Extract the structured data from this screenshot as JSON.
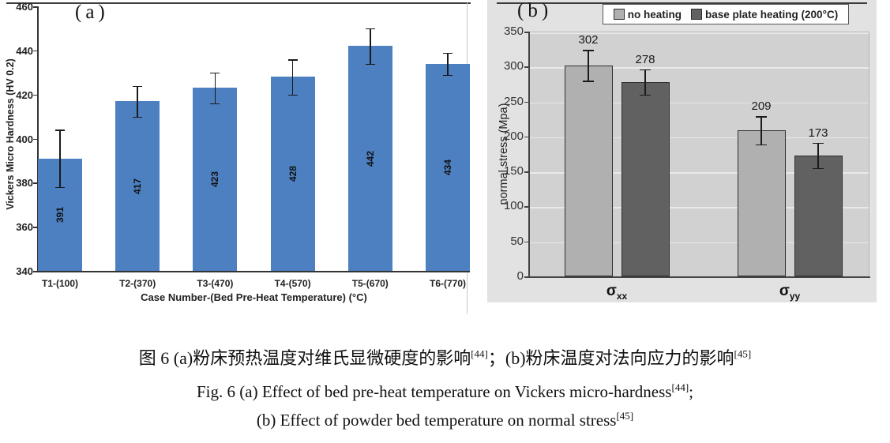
{
  "panels": {
    "a": {
      "label": "(a)"
    },
    "b": {
      "label": "(b)"
    }
  },
  "chart_data": [
    {
      "type": "bar",
      "panel": "a",
      "ylabel": "Vickers Micro Hardness (HV 0.2)",
      "xlabel": "Case Number-(Bed Pre-Heat Temperature) (°C)",
      "ylim": [
        340,
        460
      ],
      "yticks": [
        340,
        360,
        380,
        400,
        420,
        440,
        460
      ],
      "categories": [
        "T1-(100)",
        "T2-(370)",
        "T3-(470)",
        "T4-(570)",
        "T5-(670)",
        "T6-(770)"
      ],
      "values": [
        391,
        417,
        423,
        428,
        442,
        434
      ],
      "errors": [
        13,
        7,
        7,
        8,
        8,
        5
      ],
      "bar_color": "#4d80c0",
      "grid": false,
      "legend": null
    },
    {
      "type": "grouped-bar",
      "panel": "b",
      "ylabel": "normal stress (Mpa)",
      "xlabel": "",
      "ylim": [
        0,
        350
      ],
      "yticks": [
        0,
        50,
        100,
        150,
        200,
        250,
        300,
        350
      ],
      "categories": [
        {
          "base": "σ",
          "sub": "xx"
        },
        {
          "base": "σ",
          "sub": "yy"
        }
      ],
      "series": [
        {
          "name": "no heating",
          "values": [
            302,
            209
          ],
          "errors": [
            22,
            20
          ],
          "color": "#b0b0b0"
        },
        {
          "name": "base plate heating (200°C)",
          "values": [
            278,
            173
          ],
          "errors": [
            18,
            18
          ],
          "color": "#616161"
        }
      ],
      "grid": true,
      "legend_position": "top",
      "plot_bg": "#d1d1d1",
      "panel_bg": "#e2e2e2",
      "gridline_color": "#e9e9e9"
    }
  ],
  "caption": {
    "line1": [
      {
        "text": "图 6 (a)粉床预热温度对维氏显微硬度的影响"
      },
      {
        "text": "[44]",
        "sup": true
      },
      {
        "text": "；(b)粉床温度对法向应力的影响"
      },
      {
        "text": "[45]",
        "sup": true
      }
    ],
    "line2": [
      {
        "text": "Fig. 6 (a) Effect of bed pre-heat temperature on Vickers micro-hardness"
      },
      {
        "text": "[44]",
        "sup": true
      },
      {
        "text": ";"
      }
    ],
    "line3": [
      {
        "text": "(b) Effect of powder bed temperature on normal stress"
      },
      {
        "text": "[45]",
        "sup": true
      }
    ]
  }
}
